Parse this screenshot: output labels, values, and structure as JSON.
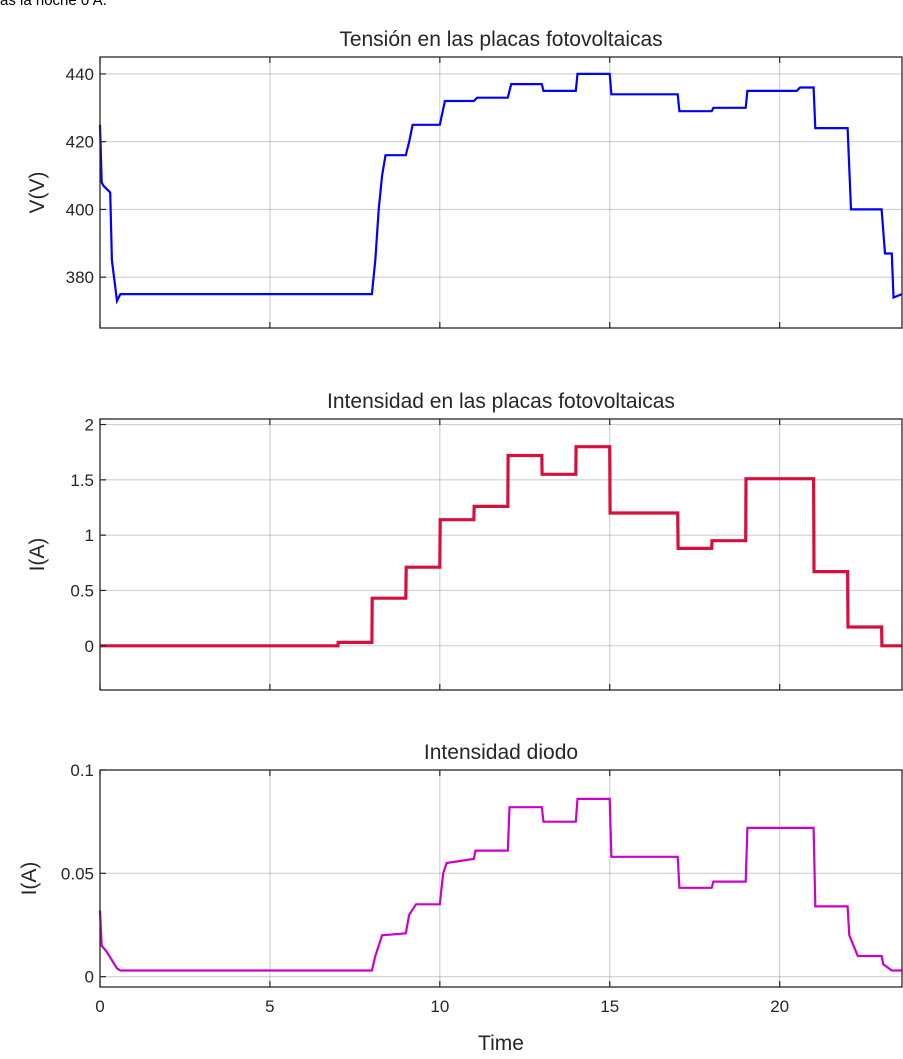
{
  "header_text": "as la noche 0 A.",
  "chart_data": [
    {
      "type": "line",
      "title": "Tensión en las placas fotovoltaicas",
      "ylabel": "V(V)",
      "xlabel": "",
      "xlim": [
        0,
        23.6
      ],
      "ylim": [
        365,
        445
      ],
      "yticks": [
        380,
        400,
        420,
        440
      ],
      "xticks": [
        0,
        5,
        10,
        15,
        20
      ],
      "xtick_labels_shown": false,
      "grid": true,
      "series": [
        {
          "color": "#0000ff",
          "x": [
            0,
            0.05,
            0.1,
            0.3,
            0.35,
            0.5,
            0.6,
            8.0,
            8.1,
            8.2,
            8.3,
            8.4,
            9.0,
            9.1,
            9.2,
            10.0,
            10.15,
            11.0,
            11.1,
            12.0,
            12.1,
            13.0,
            13.05,
            14.0,
            14.05,
            15.0,
            15.05,
            17.0,
            17.05,
            18.0,
            18.05,
            19.0,
            19.05,
            20.5,
            20.6,
            21.0,
            21.05,
            22.0,
            22.1,
            23.0,
            23.1,
            23.3,
            23.35,
            23.6
          ],
          "values": [
            425,
            408,
            407,
            405,
            385,
            373,
            375,
            375,
            385,
            400,
            410,
            416,
            416,
            420,
            425,
            425,
            432,
            432,
            433,
            433,
            437,
            437,
            435,
            435,
            440,
            440,
            434,
            434,
            429,
            429,
            430,
            430,
            435,
            435,
            436,
            436,
            424,
            424,
            400,
            400,
            387,
            387,
            374,
            375
          ]
        }
      ]
    },
    {
      "type": "line",
      "title": "Intensidad en las placas fotovoltaicas",
      "ylabel": "I(A)",
      "xlabel": "",
      "xlim": [
        0,
        23.6
      ],
      "ylim": [
        -0.4,
        2.05
      ],
      "yticks": [
        0,
        0.5,
        1,
        1.5,
        2
      ],
      "ytick_labels": [
        "0",
        "0.5",
        "1",
        "1.5",
        "2"
      ],
      "xticks": [
        0,
        5,
        10,
        15,
        20
      ],
      "xtick_labels_shown": false,
      "grid": true,
      "series": [
        {
          "color": "#d6103c",
          "x": [
            0,
            7.0,
            7.01,
            8.0,
            8.01,
            9.0,
            9.01,
            10.0,
            10.01,
            11.0,
            11.01,
            12.0,
            12.01,
            13.0,
            13.01,
            14.0,
            14.01,
            15.0,
            15.01,
            17.0,
            17.01,
            18.0,
            18.01,
            19.0,
            19.01,
            21.0,
            21.01,
            22.0,
            22.01,
            23.0,
            23.01,
            23.6
          ],
          "values": [
            0,
            0,
            0.03,
            0.03,
            0.43,
            0.43,
            0.71,
            0.71,
            1.14,
            1.14,
            1.26,
            1.26,
            1.72,
            1.72,
            1.55,
            1.55,
            1.8,
            1.8,
            1.2,
            1.2,
            0.88,
            0.88,
            0.95,
            0.95,
            1.51,
            1.51,
            0.67,
            0.67,
            0.17,
            0.17,
            0.0,
            0.0
          ]
        }
      ]
    },
    {
      "type": "line",
      "title": "Intensidad diodo",
      "ylabel": "I(A)",
      "xlabel": "Time",
      "xlim": [
        0,
        23.6
      ],
      "ylim": [
        -0.005,
        0.1
      ],
      "yticks": [
        0,
        0.05,
        0.1
      ],
      "ytick_labels": [
        "0",
        "0.05",
        "0.1"
      ],
      "xticks": [
        0,
        5,
        10,
        15,
        20
      ],
      "xtick_labels": [
        "0",
        "5",
        "10",
        "15",
        "20"
      ],
      "xtick_labels_shown": true,
      "grid": true,
      "series": [
        {
          "color": "#cc00cc",
          "x": [
            0,
            0.05,
            0.2,
            0.5,
            0.6,
            8.0,
            8.1,
            8.3,
            9.0,
            9.1,
            9.3,
            10.0,
            10.1,
            10.2,
            11.0,
            11.05,
            12.0,
            12.05,
            13.0,
            13.05,
            14.0,
            14.05,
            15.0,
            15.05,
            17.0,
            17.05,
            18.0,
            18.05,
            19.0,
            19.05,
            21.0,
            21.05,
            22.0,
            22.05,
            22.3,
            23.0,
            23.05,
            23.3,
            23.6
          ],
          "values": [
            0.032,
            0.015,
            0.012,
            0.004,
            0.003,
            0.003,
            0.01,
            0.02,
            0.021,
            0.03,
            0.035,
            0.035,
            0.05,
            0.055,
            0.057,
            0.061,
            0.061,
            0.082,
            0.082,
            0.075,
            0.075,
            0.086,
            0.086,
            0.058,
            0.058,
            0.043,
            0.043,
            0.046,
            0.046,
            0.072,
            0.072,
            0.034,
            0.034,
            0.02,
            0.01,
            0.01,
            0.006,
            0.003,
            0.003
          ]
        }
      ]
    }
  ]
}
